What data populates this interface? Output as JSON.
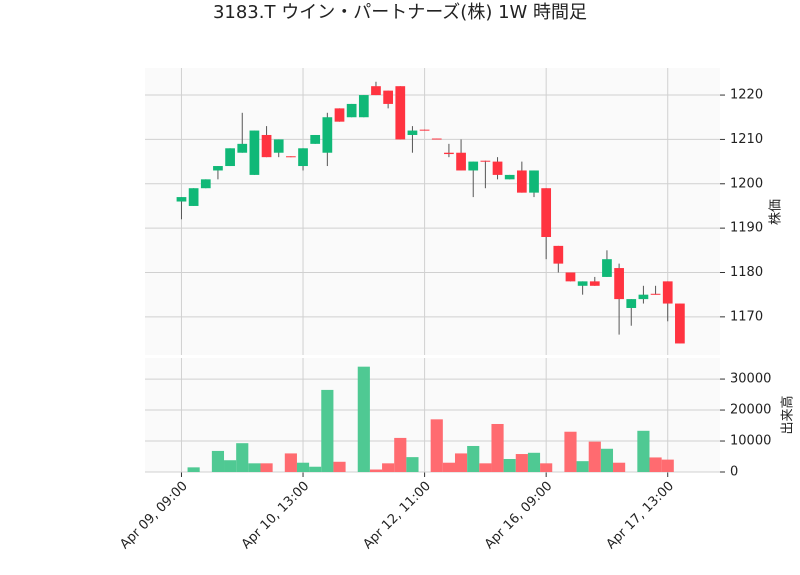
{
  "chart_data": {
    "type": "candlestick",
    "title": "3183.T ウイン・パートナーズ(株) 1W 時間足",
    "ylabel": "株価",
    "volume_label": "出来高",
    "up_color": "#10b877",
    "down_color": "#ff3340",
    "volume_up_color": "#4fc993",
    "volume_down_color": "#ff6b70",
    "grid": true,
    "xlim": [
      -3,
      44.3
    ],
    "xticks": [
      {
        "value": 0,
        "label": "Apr 09, 09:00"
      },
      {
        "value": 10,
        "label": "Apr 10, 13:00"
      },
      {
        "value": 20,
        "label": "Apr 12, 11:00"
      },
      {
        "value": 30,
        "label": "Apr 16, 09:00"
      },
      {
        "value": 40,
        "label": "Apr 17, 13:00"
      }
    ],
    "ylim": [
      1161.4,
      1226.1
    ],
    "yticks": [
      1170,
      1180,
      1190,
      1200,
      1210,
      1220
    ],
    "volume_ylim": [
      0,
      36800
    ],
    "volume_yticks": [
      0,
      10000,
      20000,
      30000
    ],
    "open": [
      1196,
      1195,
      1199,
      1203,
      1204,
      1207,
      1202,
      1211,
      1207,
      1206.2,
      1204,
      1209,
      1207,
      1217,
      1215,
      1215,
      1222,
      1221,
      1222,
      1211,
      1212.2,
      1210.2,
      1207,
      1207,
      1203,
      1205.2,
      1205,
      1201,
      1203,
      1198,
      1199,
      1186,
      1180,
      1177,
      1178,
      1179,
      1181,
      1172,
      1174,
      1175.2,
      1178,
      1173
    ],
    "high": [
      1197,
      1199,
      1201,
      1204,
      1208,
      1216,
      1212,
      1213,
      1210,
      1206.2,
      1208,
      1211,
      1216,
      1217,
      1218,
      1220,
      1223,
      1221,
      1222,
      1213,
      1212.2,
      1210.2,
      1209,
      1210,
      1205,
      1205.2,
      1206,
      1202,
      1205,
      1203,
      1199,
      1186,
      1180,
      1178,
      1179,
      1185,
      1182,
      1174,
      1177,
      1177,
      1178,
      1173
    ],
    "low": [
      1192,
      1195,
      1199,
      1201,
      1204,
      1207,
      1202,
      1206,
      1206,
      1206,
      1203,
      1209,
      1204,
      1214,
      1215,
      1215,
      1220,
      1217,
      1210,
      1207,
      1212,
      1210,
      1206,
      1203,
      1197,
      1199,
      1201,
      1201,
      1198,
      1197,
      1183,
      1180,
      1178,
      1175,
      1177,
      1179,
      1166,
      1168,
      1173,
      1175,
      1169,
      1164
    ],
    "close": [
      1197,
      1199,
      1201,
      1204,
      1208,
      1209,
      1212,
      1206,
      1210,
      1206,
      1208,
      1211,
      1215,
      1214,
      1218,
      1220,
      1220,
      1218,
      1210,
      1212,
      1212,
      1210,
      1206.7,
      1203,
      1205,
      1205,
      1202,
      1202,
      1198,
      1203,
      1188,
      1182,
      1178,
      1178,
      1177,
      1183,
      1174,
      1174,
      1175,
      1175,
      1173,
      1164
    ],
    "volume": [
      0,
      1500,
      0,
      6800,
      3800,
      9300,
      2800,
      2800,
      0,
      6000,
      3000,
      1700,
      26500,
      3300,
      0,
      34000,
      800,
      2800,
      11000,
      4800,
      0,
      17000,
      3000,
      6000,
      8400,
      2800,
      15500,
      4200,
      5800,
      6200,
      2800,
      0,
      13000,
      3500,
      9800,
      7500,
      3000,
      0,
      13300,
      4700,
      4000,
      0
    ]
  }
}
